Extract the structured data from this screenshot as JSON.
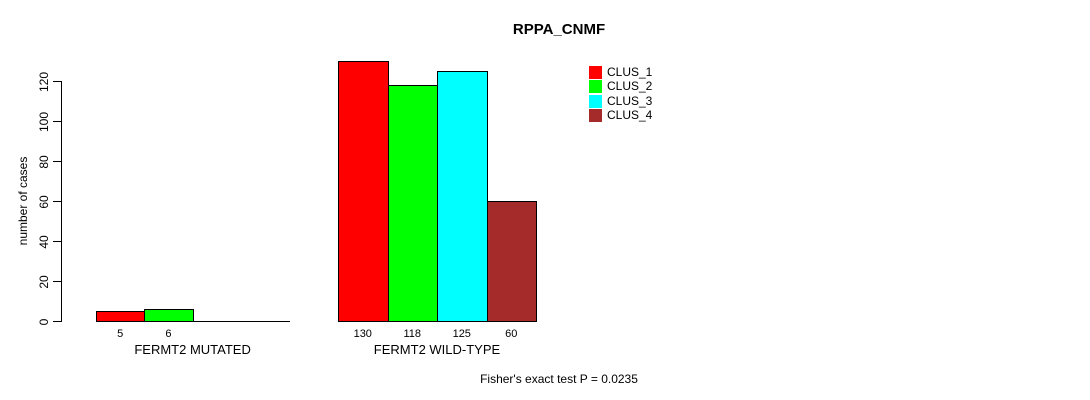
{
  "chart_data": {
    "type": "bar",
    "title": "RPPA_CNMF",
    "ylabel": "number of cases",
    "yticks": [
      0,
      20,
      40,
      60,
      80,
      100,
      120
    ],
    "ylim": [
      0,
      130
    ],
    "grid": false,
    "axis_color": "#000000",
    "background_color": "#ffffff",
    "categories": [
      "FERMT2 MUTATED",
      "FERMT2 WILD-TYPE"
    ],
    "series": [
      {
        "name": "CLUS_1",
        "color": "#ff0000",
        "values": [
          5,
          130
        ]
      },
      {
        "name": "CLUS_2",
        "color": "#00ff00",
        "values": [
          6,
          118
        ]
      },
      {
        "name": "CLUS_3",
        "color": "#00ffff",
        "values": [
          0,
          125
        ]
      },
      {
        "name": "CLUS_4",
        "color": "#a52a2a",
        "values": [
          0,
          60
        ]
      }
    ],
    "bar_value_labels_shown": true,
    "bar_value_labels_hidden_for_zero": true,
    "legend_position": "top-right",
    "annotation": "Fisher's exact test P = 0.0235"
  }
}
